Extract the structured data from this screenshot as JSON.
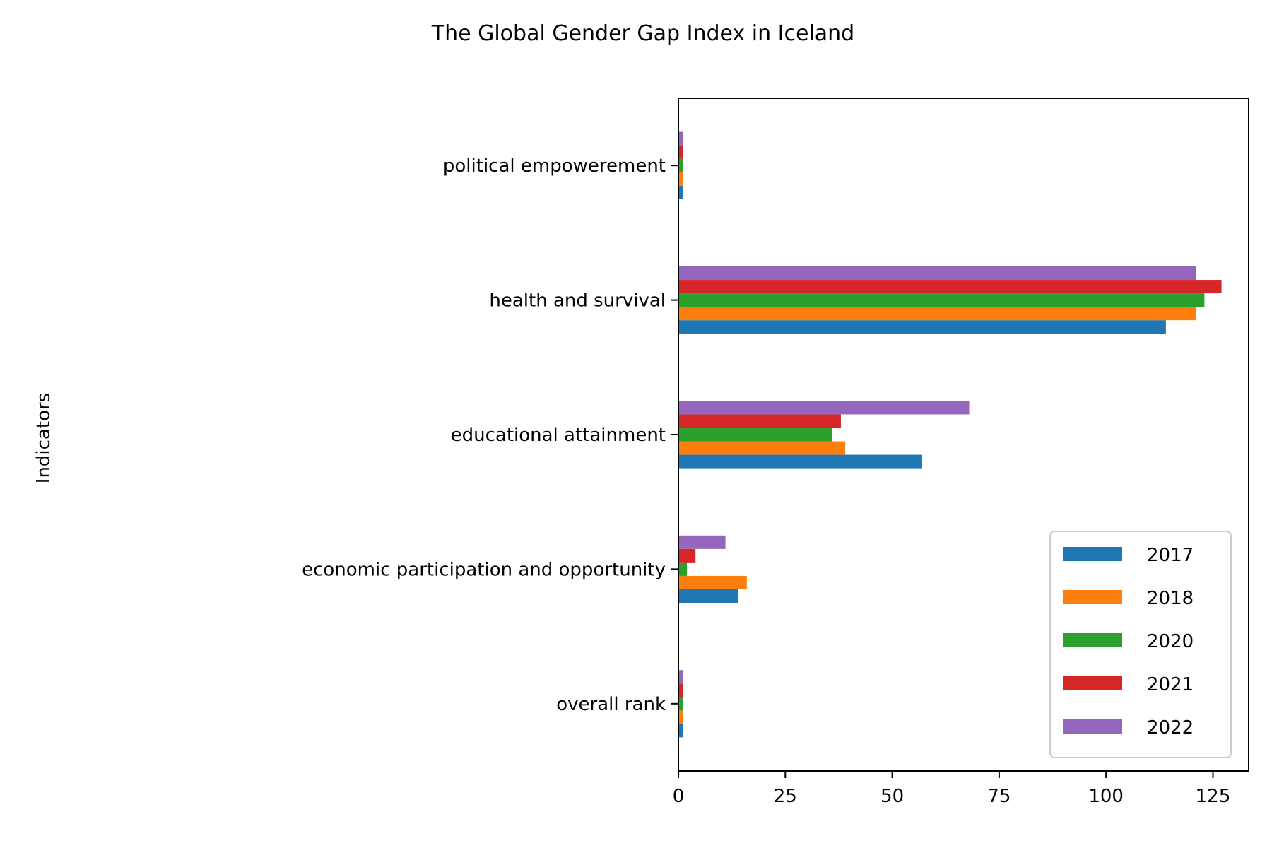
{
  "chart_data": {
    "type": "bar",
    "orientation": "horizontal",
    "title": "The Global Gender Gap Index in Iceland",
    "xlabel": "",
    "ylabel": "Indicators",
    "categories": [
      "overall rank",
      "economic participation and opportunity",
      "educational attainment ",
      "health and survival",
      "political empowerement "
    ],
    "series": [
      {
        "name": "2017",
        "color": "#1f77b4",
        "values": [
          1,
          14,
          57,
          114,
          1
        ]
      },
      {
        "name": "2018",
        "color": "#ff7f0e",
        "values": [
          1,
          16,
          39,
          121,
          1
        ]
      },
      {
        "name": "2020",
        "color": "#2ca02c",
        "values": [
          1,
          2,
          36,
          123,
          1
        ]
      },
      {
        "name": "2021",
        "color": "#d62728",
        "values": [
          1,
          4,
          38,
          127,
          1
        ]
      },
      {
        "name": "2022",
        "color": "#9467bd",
        "values": [
          1,
          11,
          68,
          121,
          1
        ]
      }
    ],
    "xlim": [
      0,
      133.35
    ],
    "xticks": [
      0,
      25,
      50,
      75,
      100,
      125
    ],
    "grid": false,
    "legend_position": "lower right"
  }
}
